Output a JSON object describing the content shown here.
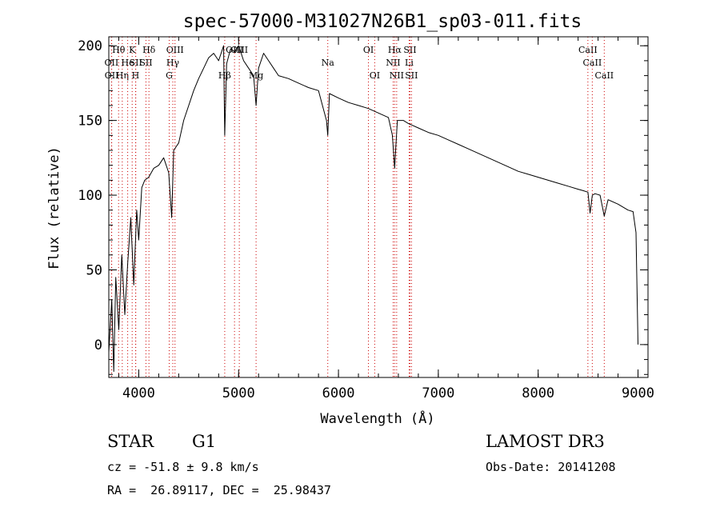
{
  "chart_data": {
    "type": "line",
    "title": "spec-57000-M31027N26B1_sp03-011.fits",
    "xlabel": "Wavelength (Å)",
    "ylabel": "Flux (relative)",
    "xlim": [
      3700,
      9100
    ],
    "ylim": [
      -22,
      206
    ],
    "xticks": [
      4000,
      5000,
      6000,
      7000,
      8000,
      9000
    ],
    "yticks": [
      0,
      50,
      100,
      150,
      200
    ],
    "series": [
      {
        "name": "spectrum",
        "x": [
          3700,
          3730,
          3750,
          3770,
          3800,
          3830,
          3860,
          3890,
          3920,
          3950,
          3980,
          4000,
          4030,
          4060,
          4100,
          4150,
          4200,
          4250,
          4300,
          4330,
          4350,
          4400,
          4450,
          4500,
          4550,
          4600,
          4650,
          4700,
          4750,
          4800,
          4850,
          4861,
          4880,
          4920,
          4960,
          5000,
          5050,
          5100,
          5150,
          5175,
          5200,
          5250,
          5300,
          5350,
          5400,
          5500,
          5600,
          5700,
          5800,
          5880,
          5893,
          5910,
          6000,
          6100,
          6200,
          6300,
          6400,
          6500,
          6540,
          6563,
          6590,
          6650,
          6700,
          6800,
          6900,
          7000,
          7100,
          7200,
          7300,
          7400,
          7500,
          7600,
          7700,
          7800,
          7900,
          8000,
          8100,
          8200,
          8300,
          8400,
          8450,
          8498,
          8520,
          8542,
          8570,
          8620,
          8662,
          8700,
          8800,
          8900,
          8950,
          8980,
          9000
        ],
        "y": [
          -5,
          30,
          -18,
          45,
          10,
          60,
          20,
          55,
          85,
          40,
          90,
          70,
          105,
          110,
          112,
          118,
          120,
          125,
          115,
          85,
          130,
          135,
          150,
          160,
          170,
          178,
          185,
          192,
          195,
          190,
          200,
          140,
          188,
          198,
          196,
          200,
          190,
          185,
          180,
          160,
          185,
          195,
          190,
          185,
          180,
          178,
          175,
          172,
          170,
          150,
          140,
          168,
          165,
          162,
          160,
          158,
          155,
          152,
          140,
          118,
          150,
          150,
          148,
          145,
          142,
          140,
          137,
          134,
          131,
          128,
          125,
          122,
          119,
          116,
          114,
          112,
          110,
          108,
          106,
          104,
          103,
          102,
          88,
          100,
          101,
          100,
          86,
          97,
          94,
          90,
          89,
          75,
          0
        ]
      }
    ],
    "spectral_lines": [
      {
        "label": "Hθ",
        "wavelength": 3798,
        "row": 1
      },
      {
        "label": "OII",
        "wavelength": 3727,
        "row": 2
      },
      {
        "label": "OII",
        "wavelength": 3729,
        "row": 3
      },
      {
        "label": "Hη",
        "wavelength": 3835,
        "row": 3
      },
      {
        "label": "He",
        "wavelength": 3889,
        "row": 2
      },
      {
        "label": "K",
        "wavelength": 3934,
        "row": 1
      },
      {
        "label": "SII",
        "wavelength": 3970,
        "row": 2
      },
      {
        "label": "H",
        "wavelength": 3968,
        "row": 3
      },
      {
        "label": "Hδ",
        "wavelength": 4102,
        "row": 1
      },
      {
        "label": "SII",
        "wavelength": 4072,
        "row": 2
      },
      {
        "label": "OIII",
        "wavelength": 4363,
        "row": 1
      },
      {
        "label": "Hγ",
        "wavelength": 4341,
        "row": 2
      },
      {
        "label": "G",
        "wavelength": 4305,
        "row": 3
      },
      {
        "label": "Hβ",
        "wavelength": 4861,
        "row": 3
      },
      {
        "label": "OIII",
        "wavelength": 4959,
        "row": 1
      },
      {
        "label": "OIII",
        "wavelength": 5007,
        "row": 1
      },
      {
        "label": "Mg",
        "wavelength": 5175,
        "row": 3
      },
      {
        "label": "Na",
        "wavelength": 5893,
        "row": 2
      },
      {
        "label": "OI",
        "wavelength": 6300,
        "row": 1
      },
      {
        "label": "OI",
        "wavelength": 6363,
        "row": 3
      },
      {
        "label": "Hα",
        "wavelength": 6563,
        "row": 1
      },
      {
        "label": "NII",
        "wavelength": 6548,
        "row": 2
      },
      {
        "label": "NII",
        "wavelength": 6583,
        "row": 3
      },
      {
        "label": "SII",
        "wavelength": 6716,
        "row": 1
      },
      {
        "label": "Li",
        "wavelength": 6708,
        "row": 2
      },
      {
        "label": "SII",
        "wavelength": 6731,
        "row": 3
      },
      {
        "label": "CaII",
        "wavelength": 8498,
        "row": 1
      },
      {
        "label": "CaII",
        "wavelength": 8542,
        "row": 2
      },
      {
        "label": "CaII",
        "wavelength": 8662,
        "row": 3
      }
    ]
  },
  "info": {
    "class": "STAR",
    "subclass": "G1",
    "survey": "LAMOST DR3",
    "cz": "cz = -51.8 ± 9.8 km/s",
    "obs_date": "Obs-Date: 20141208",
    "coords": "RA =  26.89117, DEC =  25.98437"
  },
  "colors": {
    "line_marker": "#cc0000",
    "spectrum": "#000000"
  }
}
